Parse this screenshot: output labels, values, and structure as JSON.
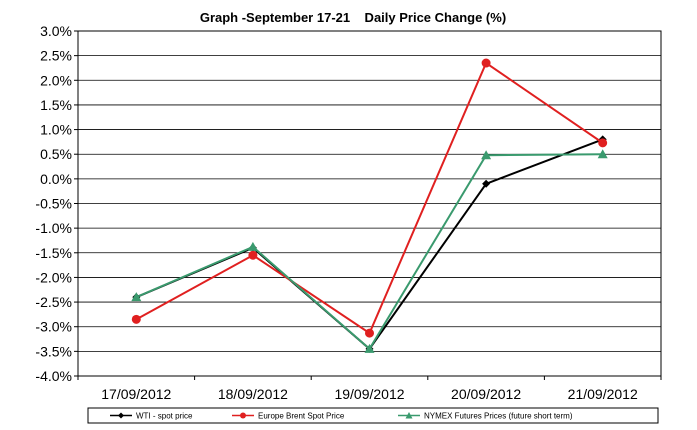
{
  "chart_data": {
    "type": "line",
    "title": "Graph -September 17-21    Daily Price Change (%)",
    "categories": [
      "17/09/2012",
      "18/09/2012",
      "19/09/2012",
      "20/09/2012",
      "21/09/2012"
    ],
    "ylim": [
      -4.0,
      3.0
    ],
    "ystep": 0.5,
    "ytick_labels": [
      "3.0%",
      "2.5%",
      "2.0%",
      "1.5%",
      "1.0%",
      "0.5%",
      "0.0%",
      "-0.5%",
      "-1.0%",
      "-1.5%",
      "-2.0%",
      "-2.5%",
      "-3.0%",
      "-3.5%",
      "-4.0%"
    ],
    "grid": true,
    "legend_position": "bottom",
    "series": [
      {
        "name": "WTI - spot price",
        "values": [
          -2.4,
          -1.4,
          -3.45,
          -0.1,
          0.8
        ],
        "color": "#000000",
        "marker": "diamond"
      },
      {
        "name": "Europe Brent Spot Price",
        "values": [
          -2.85,
          -1.55,
          -3.13,
          2.35,
          0.73
        ],
        "color": "#e02020",
        "marker": "circle"
      },
      {
        "name": "NYMEX Futures Prices (future short term)",
        "values": [
          -2.4,
          -1.38,
          -3.45,
          0.48,
          0.5
        ],
        "color": "#3a9a6e",
        "marker": "triangle"
      }
    ]
  }
}
